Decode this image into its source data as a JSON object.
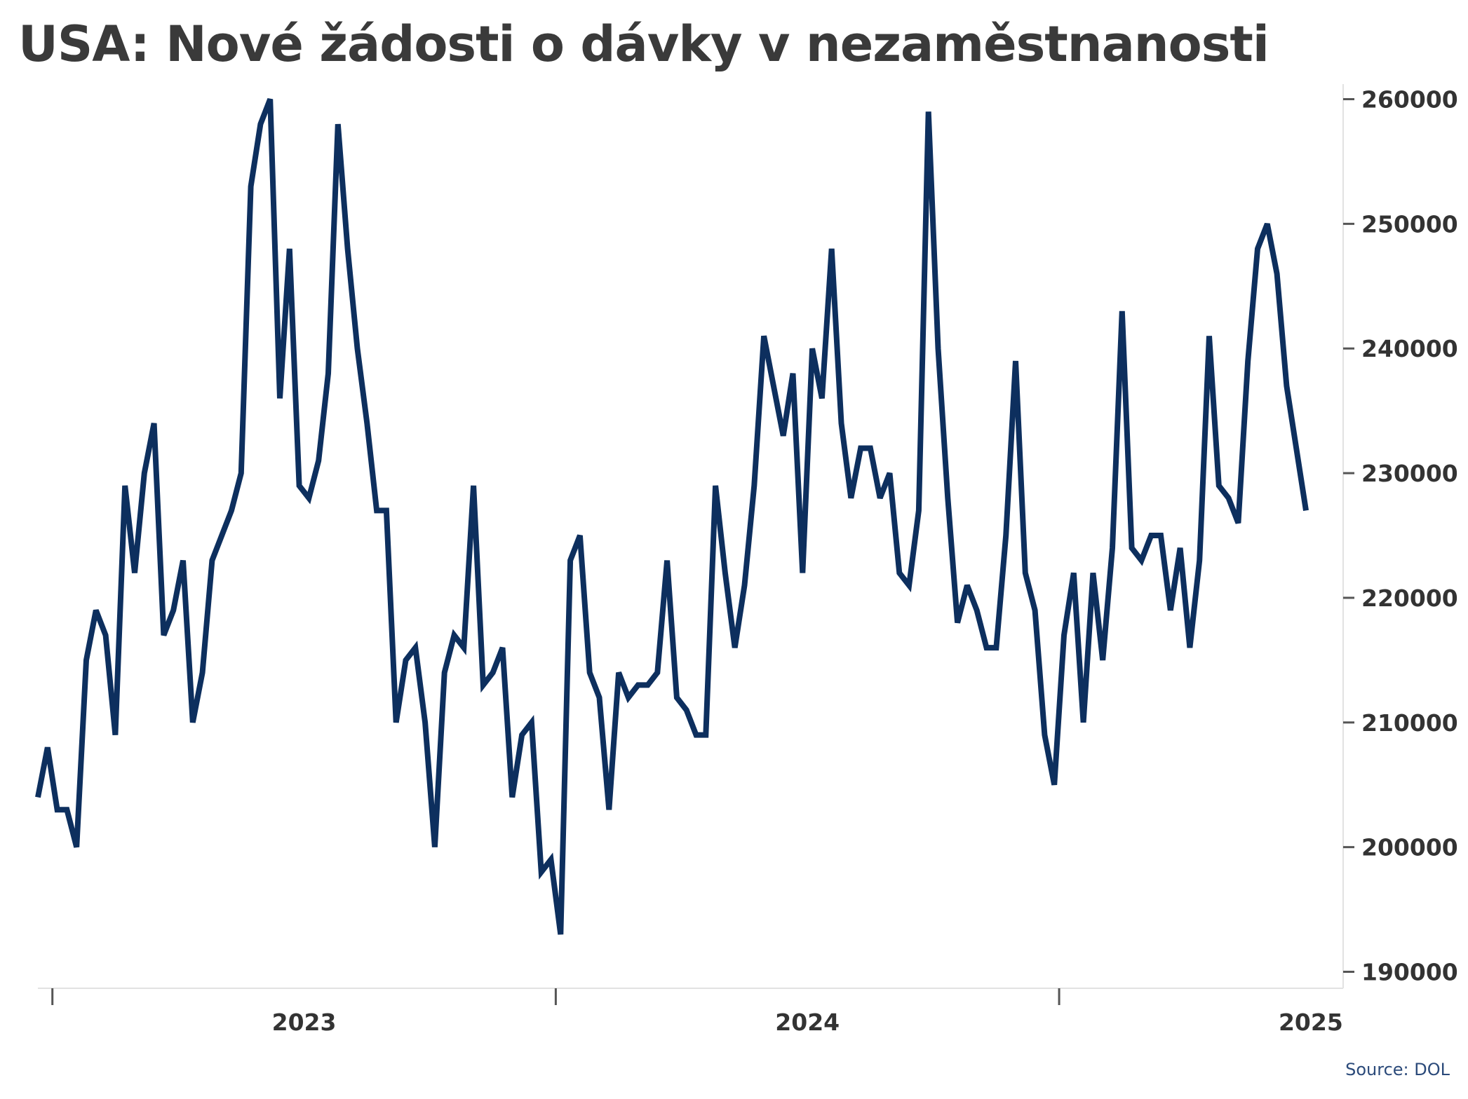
{
  "chart_data": {
    "type": "line",
    "title": "USA: Nové žádosti o dávky v nezaměstnanosti",
    "source": "Source: DOL",
    "xlabel": "",
    "ylabel": "",
    "ylim": [
      188000,
      261500
    ],
    "yticks": [
      190000,
      200000,
      210000,
      220000,
      230000,
      240000,
      250000,
      260000
    ],
    "yaxis_side": "right",
    "xticks": [
      {
        "pos": 1.5,
        "label": "",
        "tick": true
      },
      {
        "pos": 27.5,
        "label": "2023",
        "tick": false
      },
      {
        "pos": 53.5,
        "label": "",
        "tick": true
      },
      {
        "pos": 79.5,
        "label": "2024",
        "tick": false
      },
      {
        "pos": 105.5,
        "label": "",
        "tick": true
      },
      {
        "pos": 131.5,
        "label": "2025",
        "tick": false
      }
    ],
    "grid": false,
    "legend": "none",
    "line_color": "#0d2f5e",
    "series": [
      {
        "values": [
          204000,
          208000,
          203000,
          203000,
          200000,
          215000,
          219000,
          217000,
          209000,
          229000,
          222000,
          230000,
          234000,
          217000,
          219000,
          223000,
          210000,
          214000,
          223000,
          225000,
          227000,
          230000,
          253000,
          258000,
          260000,
          236000,
          248000,
          229000,
          228000,
          231000,
          238000,
          258000,
          248000,
          240000,
          234000,
          227000,
          227000,
          210000,
          215000,
          216000,
          210000,
          200000,
          214000,
          217000,
          216000,
          229000,
          213000,
          214000,
          216000,
          204000,
          209000,
          210000,
          198000,
          199000,
          193000,
          223000,
          225000,
          214000,
          212000,
          203000,
          214000,
          212000,
          213000,
          213000,
          214000,
          223000,
          212000,
          211000,
          209000,
          209000,
          229000,
          222000,
          216000,
          221000,
          229000,
          241000,
          237000,
          233000,
          238000,
          222000,
          240000,
          236000,
          248000,
          234000,
          228000,
          232000,
          232000,
          228000,
          230000,
          222000,
          221000,
          227000,
          259000,
          240000,
          228000,
          218000,
          221000,
          219000,
          216000,
          216000,
          225000,
          239000,
          222000,
          219000,
          209000,
          205000,
          217000,
          222000,
          210000,
          222000,
          215000,
          224000,
          243000,
          224000,
          223000,
          225000,
          225000,
          219000,
          224000,
          216000,
          223000,
          241000,
          229000,
          228000,
          226000,
          239000,
          248000,
          250000,
          246000,
          237000,
          232000,
          227000
        ]
      }
    ]
  }
}
